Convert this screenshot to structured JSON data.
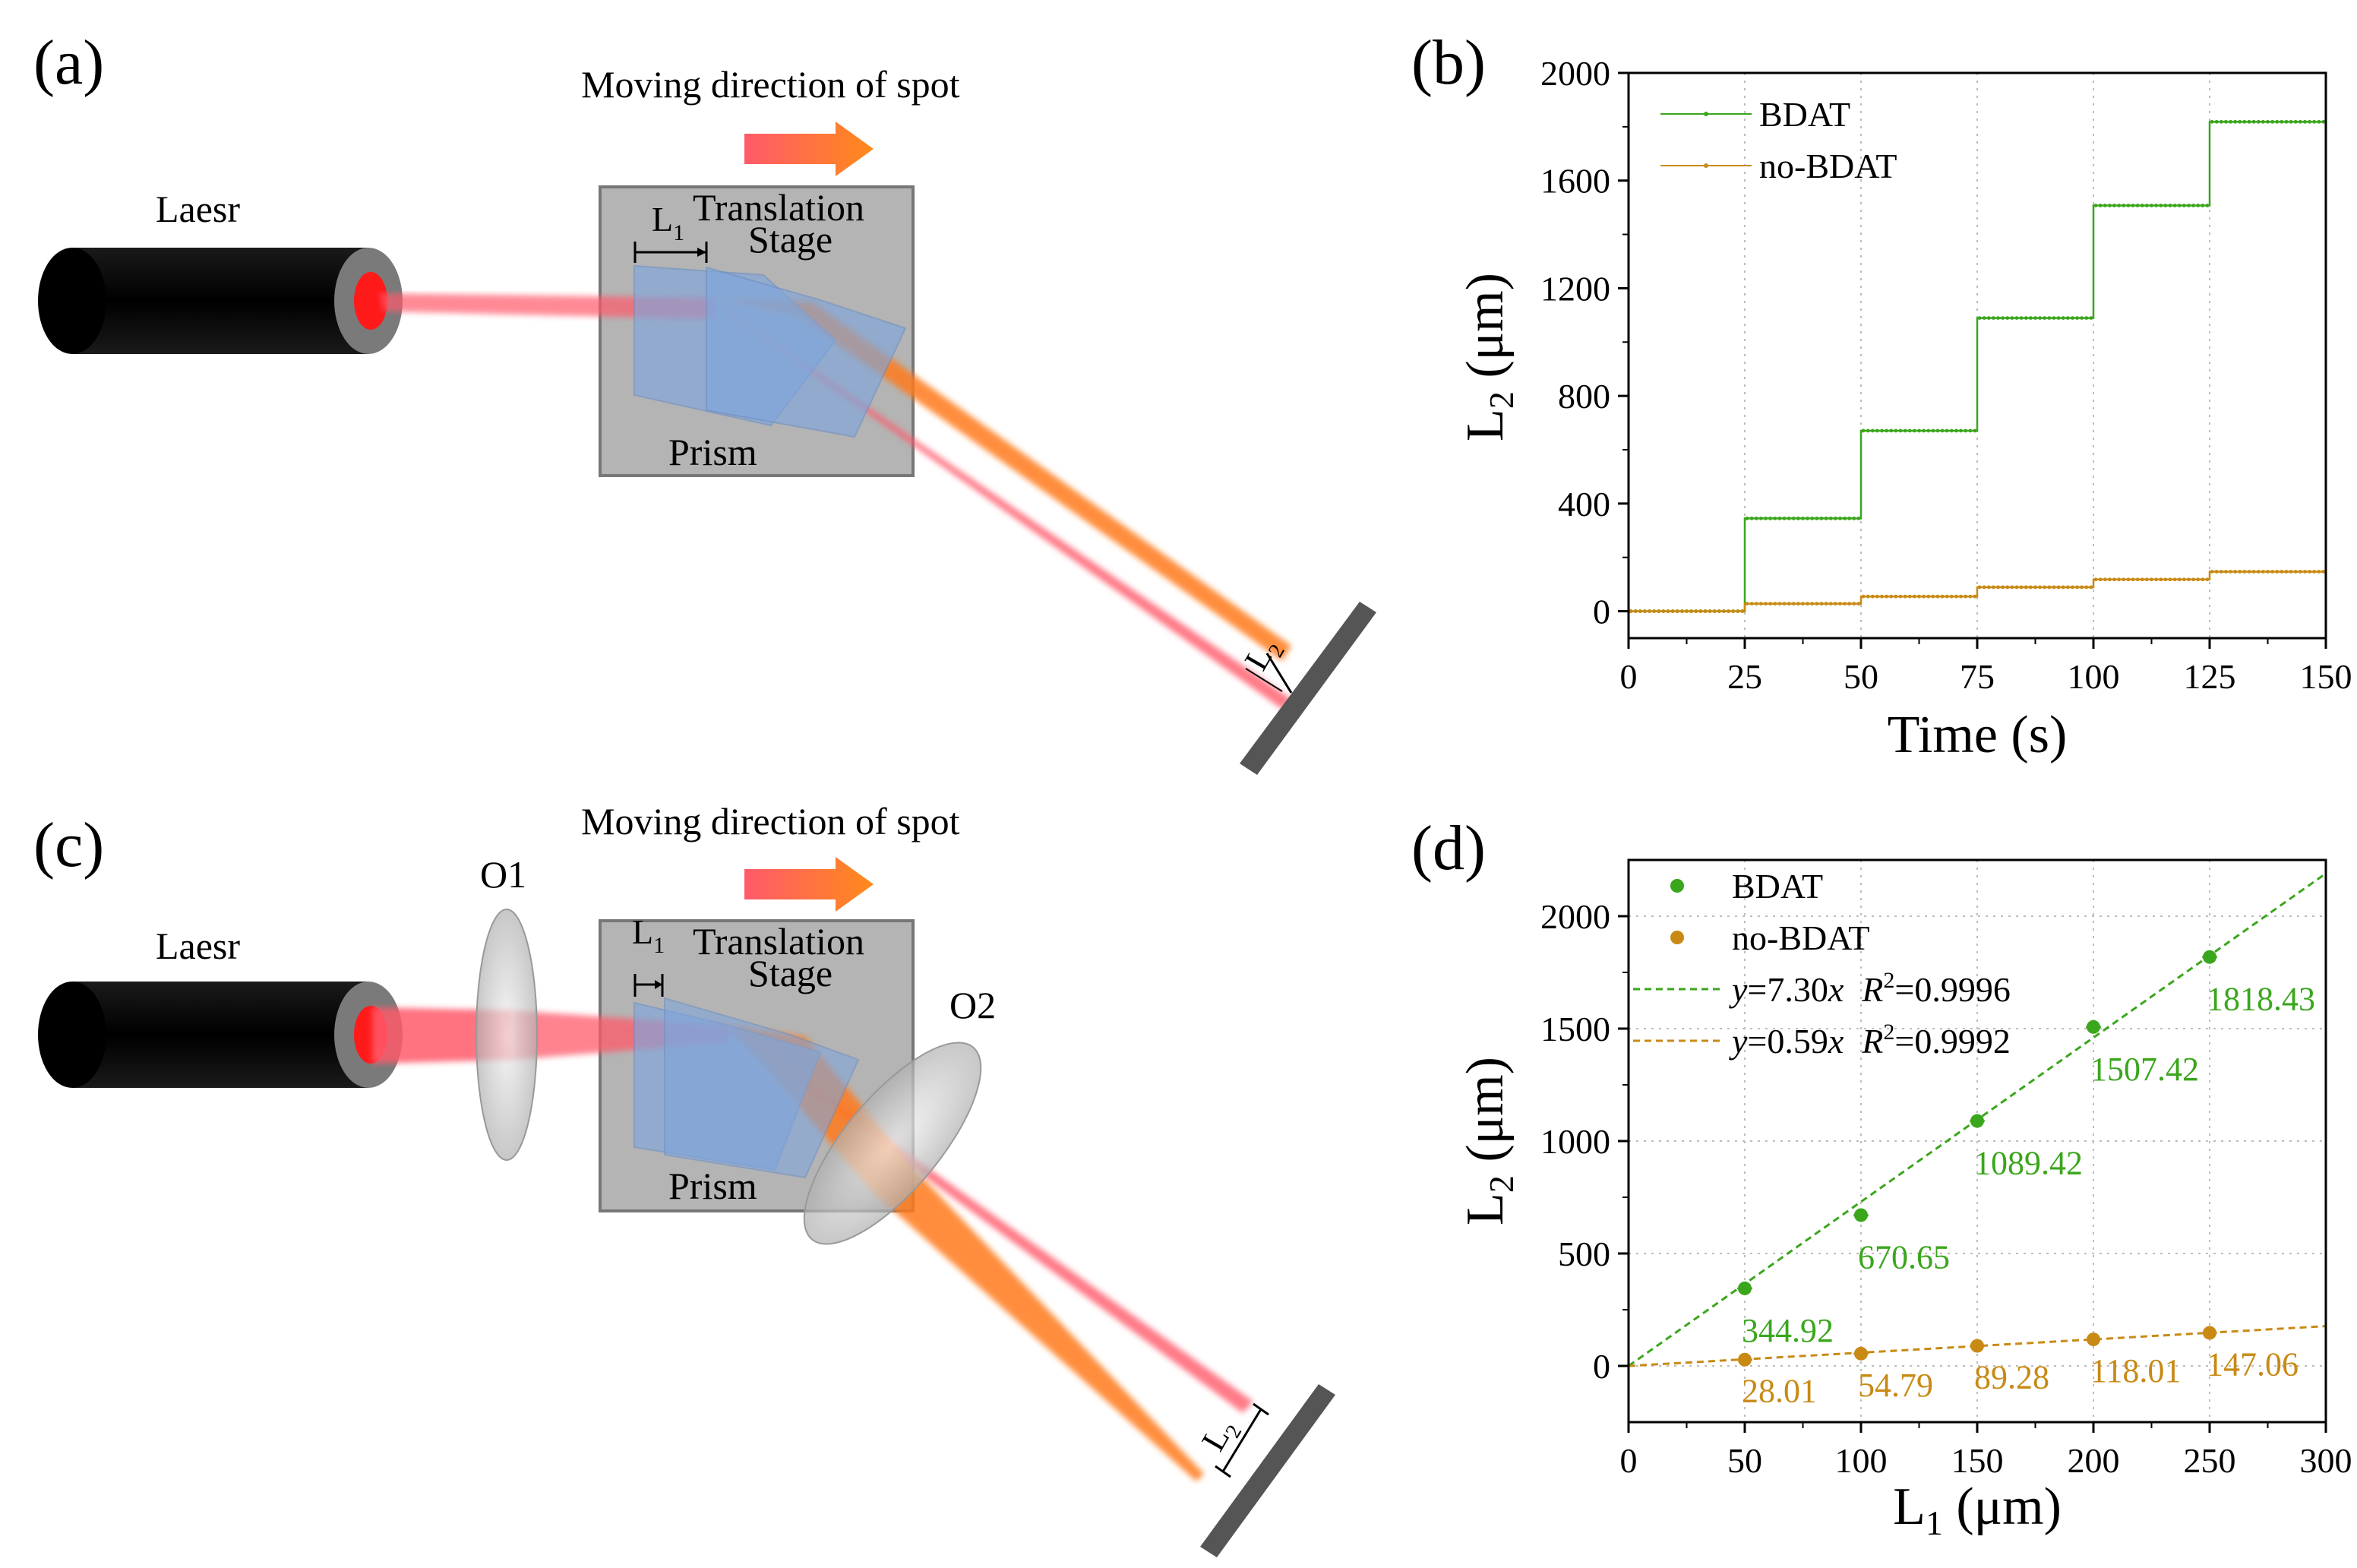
{
  "panels": {
    "a": {
      "label": "(a)",
      "direction_label": "Moving direction of spot",
      "laser_label": "Laesr",
      "stage_line1": "Translation",
      "stage_line2": "Stage",
      "prism_label": "Prism",
      "l1_label": "L",
      "l1_sub": "1",
      "l2_label": "L",
      "l2_sub": "2"
    },
    "c": {
      "label": "(c)",
      "direction_label": "Moving direction of spot",
      "laser_label": "Laesr",
      "stage_line1": "Translation",
      "stage_line2": "Stage",
      "prism_label": "Prism",
      "lens1_label": "O1",
      "lens2_label": "O2",
      "l1_label": "L",
      "l1_sub": "1",
      "l2_label": "L",
      "l2_sub": "2"
    }
  },
  "colors": {
    "green": "#3aa61c",
    "orange": "#c88a14",
    "beam_red": "#ff5a6a",
    "beam_orange": "#ff7a1a",
    "stage_gray": "#b4b4b4",
    "prism_blue": "#7fa6dc"
  },
  "chart_data": [
    {
      "panel": "b",
      "panel_label": "(b)",
      "type": "line",
      "xlabel": "Time (s)",
      "ylabel_main": "L",
      "ylabel_sub": "2",
      "ylabel_unit": " (μm)",
      "xlim": [
        0,
        150
      ],
      "ylim": [
        -100,
        2000
      ],
      "xticks": [
        0,
        25,
        50,
        75,
        100,
        125,
        150
      ],
      "yticks": [
        0,
        400,
        800,
        1200,
        1600,
        2000
      ],
      "grid_x": [
        25,
        50,
        75,
        100,
        125
      ],
      "legend_position": "top-left",
      "series": [
        {
          "name": "BDAT",
          "color": "#3aa61c",
          "steps": [
            {
              "t0": 0,
              "t1": 25,
              "value": 0
            },
            {
              "t0": 25,
              "t1": 50,
              "value": 344.92
            },
            {
              "t0": 50,
              "t1": 75,
              "value": 670.65
            },
            {
              "t0": 75,
              "t1": 100,
              "value": 1089.42
            },
            {
              "t0": 100,
              "t1": 125,
              "value": 1507.42
            },
            {
              "t0": 125,
              "t1": 150,
              "value": 1818.43
            }
          ]
        },
        {
          "name": "no-BDAT",
          "color": "#c88a14",
          "steps": [
            {
              "t0": 0,
              "t1": 25,
              "value": 0
            },
            {
              "t0": 25,
              "t1": 50,
              "value": 28.01
            },
            {
              "t0": 50,
              "t1": 75,
              "value": 54.79
            },
            {
              "t0": 75,
              "t1": 100,
              "value": 89.28
            },
            {
              "t0": 100,
              "t1": 125,
              "value": 118.01
            },
            {
              "t0": 125,
              "t1": 150,
              "value": 147.06
            }
          ]
        }
      ]
    },
    {
      "panel": "d",
      "panel_label": "(d)",
      "type": "scatter",
      "xlabel_main": "L",
      "xlabel_sub": "1",
      "xlabel_unit": " (μm)",
      "ylabel_main": "L",
      "ylabel_sub": "2",
      "ylabel_unit": " (μm)",
      "xlim": [
        0,
        300
      ],
      "ylim": [
        -250,
        2250
      ],
      "xticks": [
        0,
        50,
        100,
        150,
        200,
        250,
        300
      ],
      "yticks": [
        0,
        500,
        1000,
        1500,
        2000
      ],
      "grid": true,
      "legend_position": "top-left",
      "series": [
        {
          "name": "BDAT",
          "color": "#3aa61c",
          "x": [
            50,
            100,
            150,
            200,
            250
          ],
          "y": [
            344.92,
            670.65,
            1089.42,
            1507.42,
            1818.43
          ],
          "labels": [
            "344.92",
            "670.65",
            "1089.42",
            "1507.42",
            "1818.43"
          ]
        },
        {
          "name": "no-BDAT",
          "color": "#c88a14",
          "x": [
            50,
            100,
            150,
            200,
            250
          ],
          "y": [
            28.01,
            54.79,
            89.28,
            118.01,
            147.06
          ],
          "labels": [
            "28.01",
            "54.79",
            "89.28",
            "118.01",
            "147.06"
          ]
        }
      ],
      "fits": [
        {
          "series": "BDAT",
          "slope": 7.3,
          "eq_y": "y",
          "eq_mid": "=7.30",
          "eq_x": "x",
          "r_label": "R",
          "r_sup": "2",
          "r_value": "=0.9996"
        },
        {
          "series": "no-BDAT",
          "slope": 0.59,
          "eq_y": "y",
          "eq_mid": "=0.59",
          "eq_x": "x",
          "r_label": "R",
          "r_sup": "2",
          "r_value": "=0.9992"
        }
      ]
    }
  ]
}
